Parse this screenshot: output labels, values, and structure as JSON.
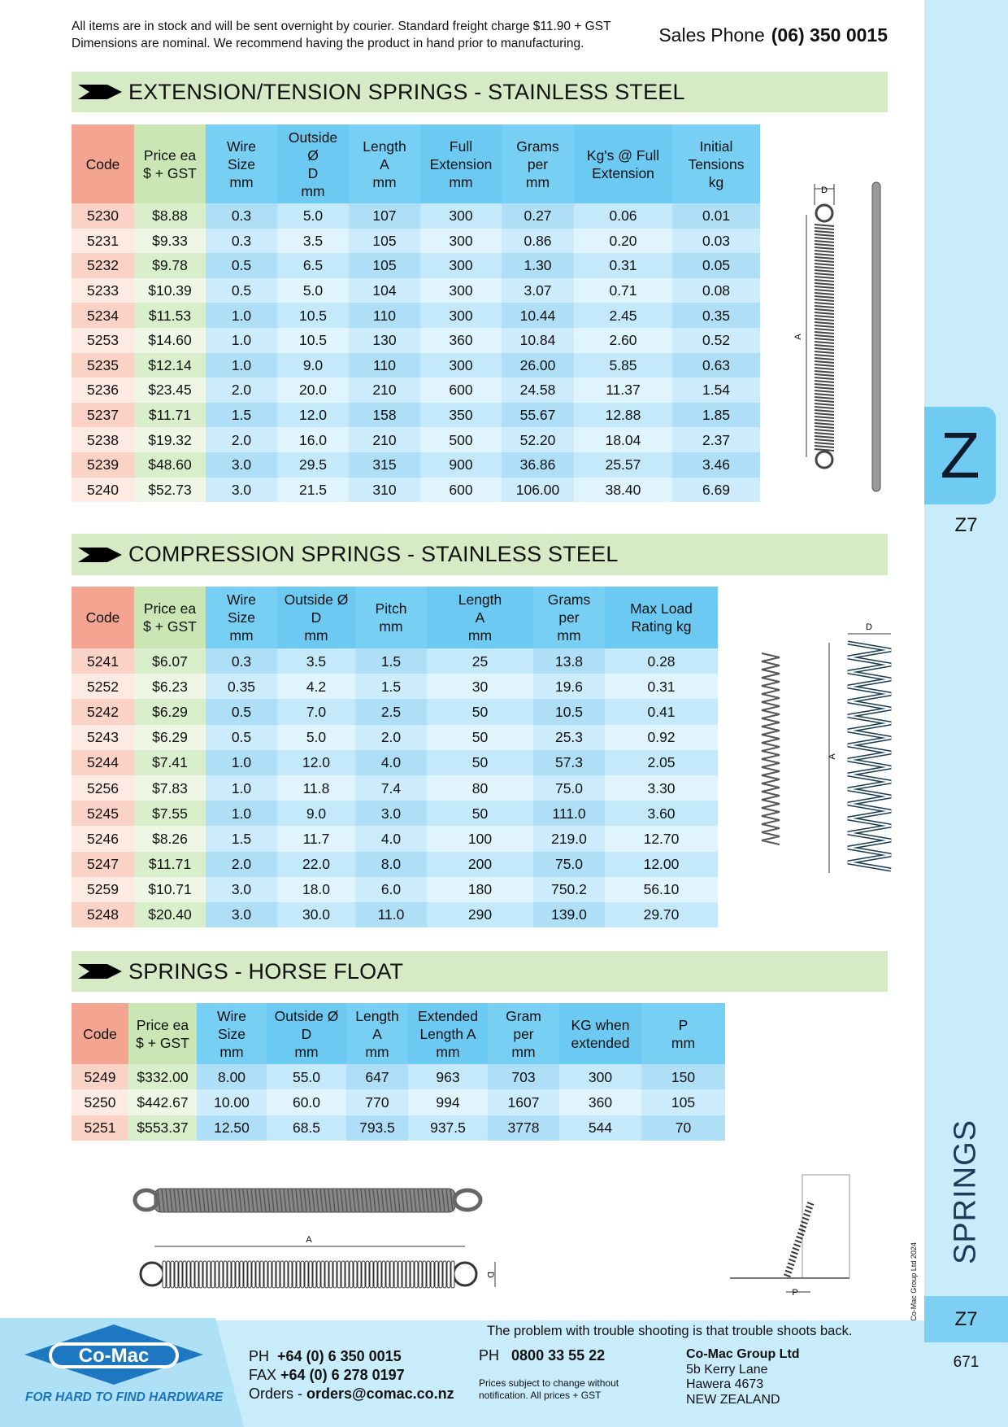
{
  "header": {
    "notice": [
      "All items are in stock and will be sent overnight by courier. Standard freight charge $11.90 + GST",
      "Dimensions are nominal. We recommend having the product in hand prior to manufacturing."
    ],
    "sales_label": "Sales Phone",
    "sales_phone": "(06) 350 0015"
  },
  "sections": [
    {
      "title": "EXTENSION/TENSION SPRINGS - STAINLESS STEEL",
      "columns": [
        "Code",
        "Price ea\n$ + GST",
        "Wire\nSize\nmm",
        "Outside\nØ\nD\nmm",
        "Length\nA\nmm",
        "Full\nExtension\nmm",
        "Grams\nper\nmm",
        "Kg's @ Full\nExtension",
        "Initial\nTensions\nkg"
      ],
      "rows": [
        [
          "5230",
          "$8.88",
          "0.3",
          "5.0",
          "107",
          "300",
          "0.27",
          "0.06",
          "0.01"
        ],
        [
          "5231",
          "$9.33",
          "0.3",
          "3.5",
          "105",
          "300",
          "0.86",
          "0.20",
          "0.03"
        ],
        [
          "5232",
          "$9.78",
          "0.5",
          "6.5",
          "105",
          "300",
          "1.30",
          "0.31",
          "0.05"
        ],
        [
          "5233",
          "$10.39",
          "0.5",
          "5.0",
          "104",
          "300",
          "3.07",
          "0.71",
          "0.08"
        ],
        [
          "5234",
          "$11.53",
          "1.0",
          "10.5",
          "110",
          "300",
          "10.44",
          "2.45",
          "0.35"
        ],
        [
          "5253",
          "$14.60",
          "1.0",
          "10.5",
          "130",
          "360",
          "10.84",
          "2.60",
          "0.52"
        ],
        [
          "5235",
          "$12.14",
          "1.0",
          "9.0",
          "110",
          "300",
          "26.00",
          "5.85",
          "0.63"
        ],
        [
          "5236",
          "$23.45",
          "2.0",
          "20.0",
          "210",
          "600",
          "24.58",
          "11.37",
          "1.54"
        ],
        [
          "5237",
          "$11.71",
          "1.5",
          "12.0",
          "158",
          "350",
          "55.67",
          "12.88",
          "1.85"
        ],
        [
          "5238",
          "$19.32",
          "2.0",
          "16.0",
          "210",
          "500",
          "52.20",
          "18.04",
          "2.37"
        ],
        [
          "5239",
          "$48.60",
          "3.0",
          "29.5",
          "315",
          "900",
          "36.86",
          "25.57",
          "3.46"
        ],
        [
          "5240",
          "$52.73",
          "3.0",
          "21.5",
          "310",
          "600",
          "106.00",
          "38.40",
          "6.69"
        ]
      ]
    },
    {
      "title": "COMPRESSION SPRINGS - STAINLESS STEEL",
      "columns": [
        "Code",
        "Price ea\n$ + GST",
        "Wire\nSize\nmm",
        "Outside Ø\nD\nmm",
        "Pitch\nmm",
        "Length\nA\nmm",
        "Grams\nper\nmm",
        "Max Load\nRating kg"
      ],
      "rows": [
        [
          "5241",
          "$6.07",
          "0.3",
          "3.5",
          "1.5",
          "25",
          "13.8",
          "0.28"
        ],
        [
          "5252",
          "$6.23",
          "0.35",
          "4.2",
          "1.5",
          "30",
          "19.6",
          "0.31"
        ],
        [
          "5242",
          "$6.29",
          "0.5",
          "7.0",
          "2.5",
          "50",
          "10.5",
          "0.41"
        ],
        [
          "5243",
          "$6.29",
          "0.5",
          "5.0",
          "2.0",
          "50",
          "25.3",
          "0.92"
        ],
        [
          "5244",
          "$7.41",
          "1.0",
          "12.0",
          "4.0",
          "50",
          "57.3",
          "2.05"
        ],
        [
          "5256",
          "$7.83",
          "1.0",
          "11.8",
          "7.4",
          "80",
          "75.0",
          "3.30"
        ],
        [
          "5245",
          "$7.55",
          "1.0",
          "9.0",
          "3.0",
          "50",
          "111.0",
          "3.60"
        ],
        [
          "5246",
          "$8.26",
          "1.5",
          "11.7",
          "4.0",
          "100",
          "219.0",
          "12.70"
        ],
        [
          "5247",
          "$11.71",
          "2.0",
          "22.0",
          "8.0",
          "200",
          "75.0",
          "12.00"
        ],
        [
          "5259",
          "$10.71",
          "3.0",
          "18.0",
          "6.0",
          "180",
          "750.2",
          "56.10"
        ],
        [
          "5248",
          "$20.40",
          "3.0",
          "30.0",
          "11.0",
          "290",
          "139.0",
          "29.70"
        ]
      ]
    },
    {
      "title": "SPRINGS - HORSE FLOAT",
      "columns": [
        "Code",
        "Price ea\n$ + GST",
        "Wire\nSize\nmm",
        "Outside Ø\nD\nmm",
        "Length\nA\nmm",
        "Extended\nLength A\nmm",
        "Gram\nper\nmm",
        "KG when\nextended",
        "P\nmm"
      ],
      "rows": [
        [
          "5249",
          "$332.00",
          "8.00",
          "55.0",
          "647",
          "963",
          "703",
          "300",
          "150"
        ],
        [
          "5250",
          "$442.67",
          "10.00",
          "60.0",
          "770",
          "994",
          "1607",
          "360",
          "105"
        ],
        [
          "5251",
          "$553.37",
          "12.50",
          "68.5",
          "793.5",
          "937.5",
          "3778",
          "544",
          "70"
        ]
      ]
    }
  ],
  "diagram_labels": {
    "d": "D",
    "a": "A",
    "p": "P"
  },
  "side": {
    "tab": "Z",
    "page_code": "Z7",
    "category": "SPRINGS",
    "page_code_tab": "Z7",
    "page_number": "671",
    "copyright": "© Co-Mac Group Ltd 2024"
  },
  "footer": {
    "tagline": "The problem with trouble shooting is that trouble shoots back.",
    "logo": "Co-Mac",
    "slogan": "FOR HARD TO FIND HARDWARE",
    "ph_label": "PH",
    "ph": "+64 (0) 6 350 0015",
    "fax_label": "FAX",
    "fax": "+64 (0) 6 278 0197",
    "orders_label": "Orders -",
    "orders": "orders@comac.co.nz",
    "ph2_label": "PH",
    "ph2": "0800 33 55 22",
    "prices_note": [
      "Prices subject to change without",
      "notification. All prices + GST"
    ],
    "company": "Co-Mac Group Ltd",
    "address": [
      "5b Kerry Lane",
      "Hawera 4673",
      "NEW ZEALAND"
    ]
  }
}
